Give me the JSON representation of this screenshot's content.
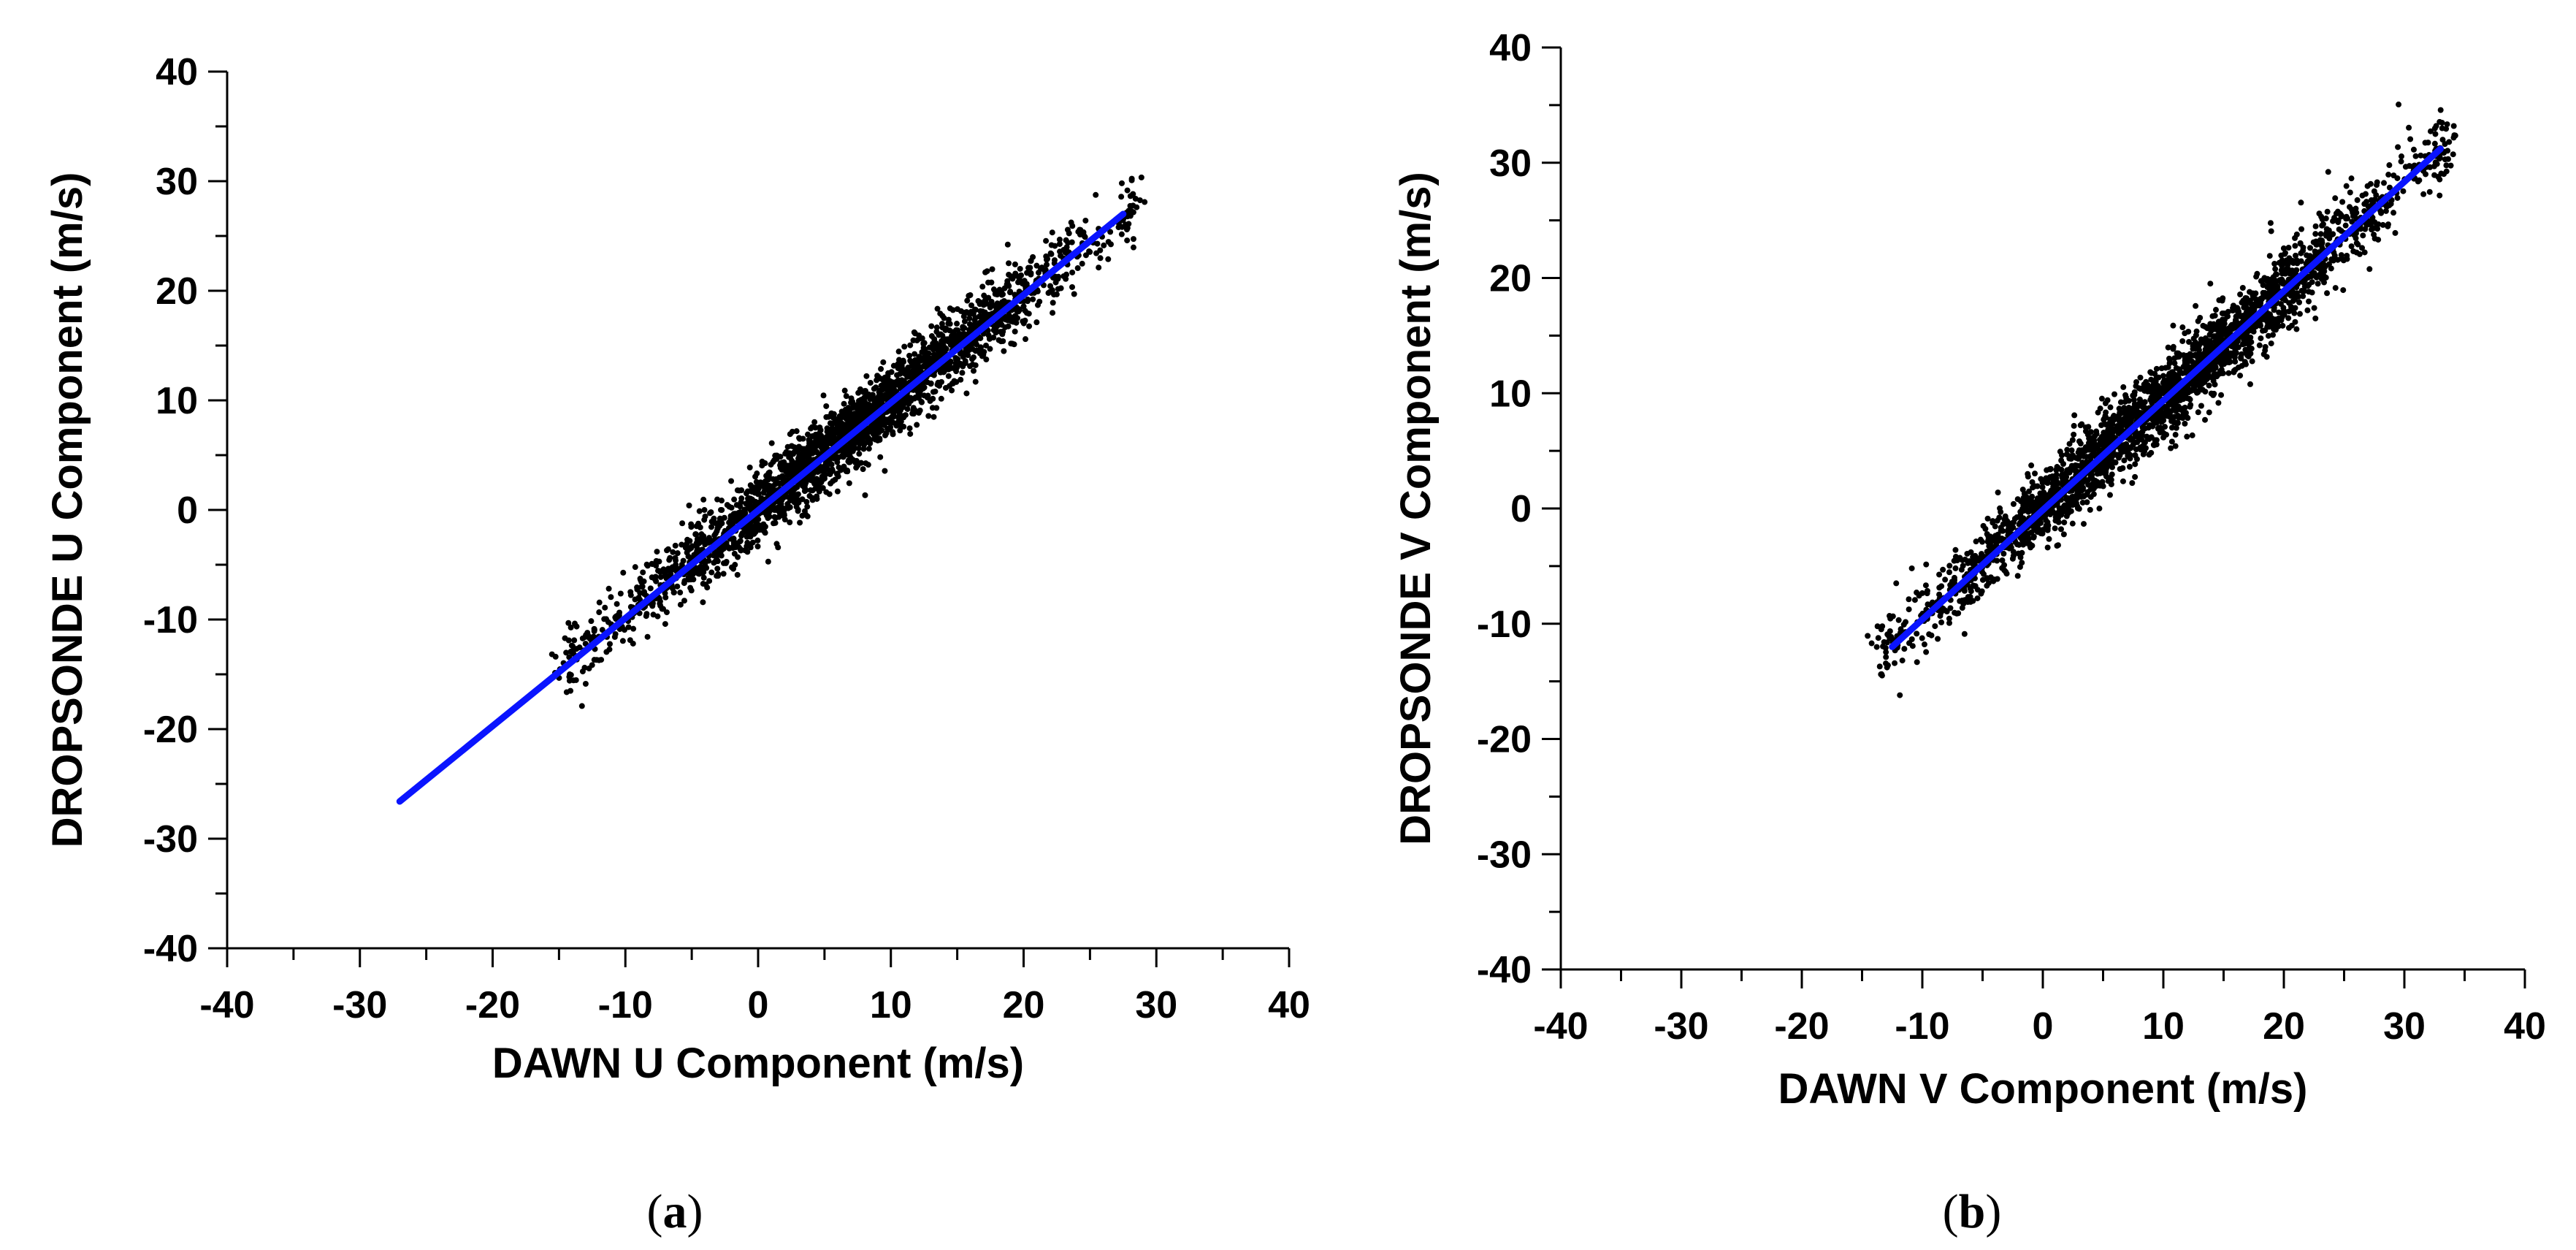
{
  "chart_data": [
    {
      "type": "scatter",
      "panel_label": "(a)",
      "panel_letter": "a",
      "xlabel": "DAWN U Component (m/s)",
      "ylabel": "DROPSONDE U Component (m/s)",
      "xlim": [
        -40,
        40
      ],
      "ylim": [
        -40,
        40
      ],
      "xticks": [
        -40,
        -30,
        -20,
        -10,
        0,
        10,
        20,
        30,
        40
      ],
      "yticks": [
        -40,
        -30,
        -20,
        -10,
        0,
        10,
        20,
        30,
        40
      ],
      "grid": false,
      "point_color": "#000000",
      "fit_color": "#0a14ff",
      "point_cloud": {
        "x_range": [
          -14,
          28
        ],
        "approx_slope": 0.98,
        "approx_intercept": 0.2,
        "spread": 1.6
      },
      "fit_line": {
        "x": [
          -27,
          27.5
        ],
        "y": [
          -26.6,
          27.0
        ]
      }
    },
    {
      "type": "scatter",
      "panel_label": "(b)",
      "panel_letter": "b",
      "xlabel": "DAWN V Component (m/s)",
      "ylabel": "DROPSONDE V Component (m/s)",
      "xlim": [
        -40,
        40
      ],
      "ylim": [
        -40,
        40
      ],
      "xticks": [
        -40,
        -30,
        -20,
        -10,
        0,
        10,
        20,
        30,
        40
      ],
      "yticks": [
        -40,
        -30,
        -20,
        -10,
        0,
        10,
        20,
        30,
        40
      ],
      "grid": false,
      "point_color": "#000000",
      "fit_color": "#0a14ff",
      "point_cloud": {
        "x_range": [
          -13,
          33
        ],
        "approx_slope": 0.95,
        "approx_intercept": 0.0,
        "spread": 1.7
      },
      "fit_line": {
        "x": [
          -12.5,
          33
        ],
        "y": [
          -12.0,
          31.2
        ]
      }
    }
  ]
}
